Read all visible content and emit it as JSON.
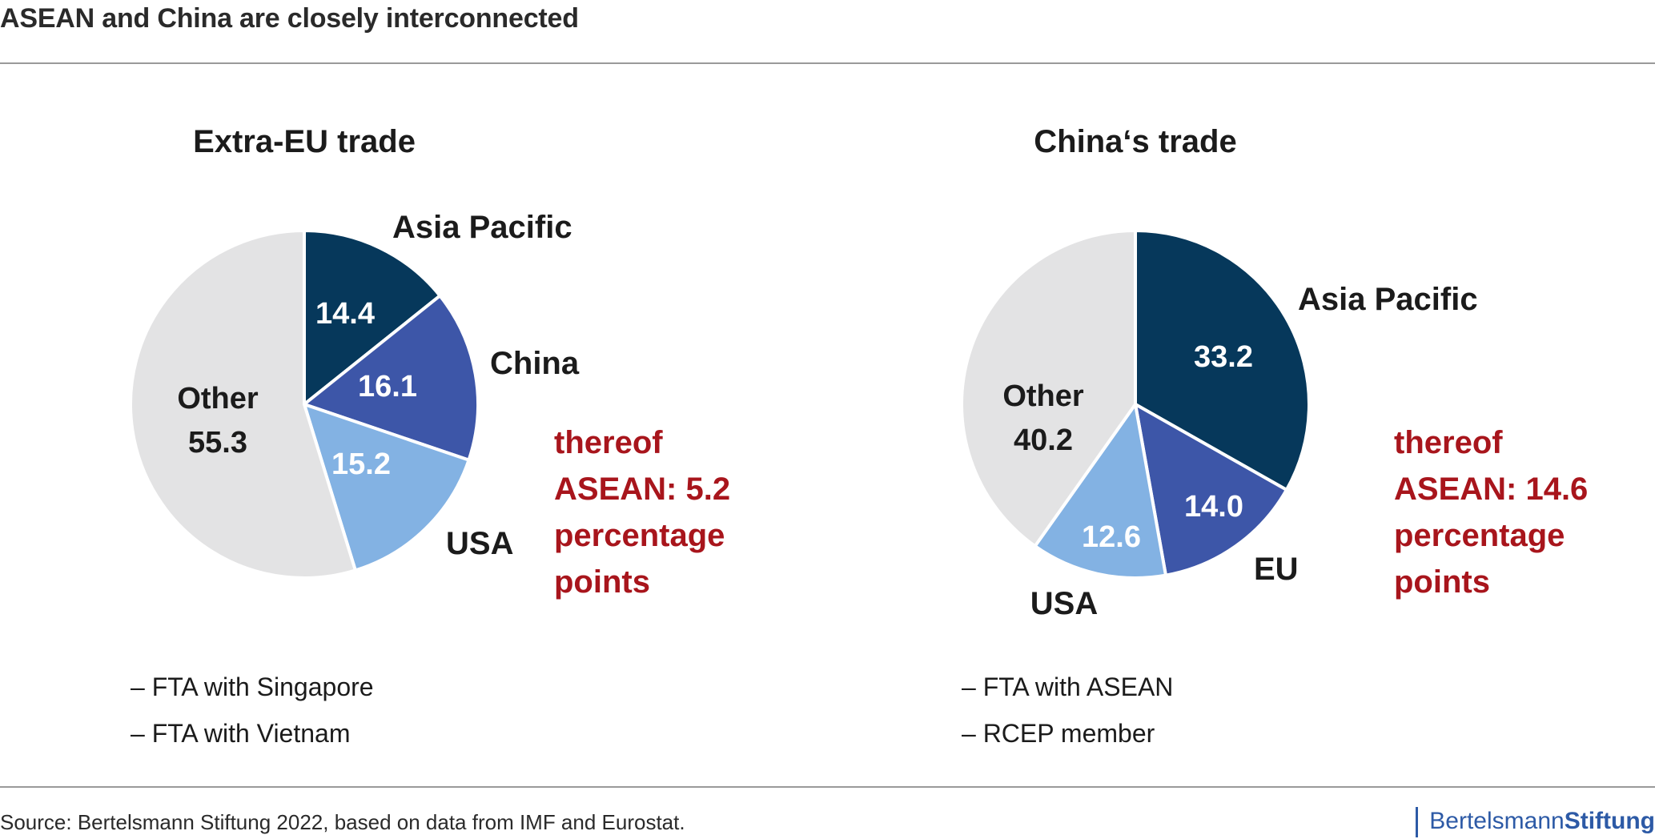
{
  "header": {
    "title": "ASEAN and China are closely interconnected"
  },
  "colors": {
    "asia_pacific": "#06385b",
    "china_eu": "#3d56a8",
    "usa": "#83b2e3",
    "other": "#e3e3e4",
    "note": "#a8151c"
  },
  "chart_data": [
    {
      "type": "pie",
      "title": "Extra-EU trade",
      "slices": [
        {
          "label": "Asia Pacific",
          "value": 14.4,
          "color": "#06385b",
          "value_color": "#ffffff"
        },
        {
          "label": "China",
          "value": 16.1,
          "color": "#3d56a8",
          "value_color": "#ffffff"
        },
        {
          "label": "USA",
          "value": 15.2,
          "color": "#83b2e3",
          "value_color": "#ffffff"
        },
        {
          "label": "Other",
          "value": 55.3,
          "color": "#e3e3e4",
          "value_color": "#1b1b1b"
        }
      ],
      "note_lines": [
        "thereof",
        "ASEAN: 5.2",
        "percentage",
        "points"
      ],
      "bullets": [
        "– FTA with Singapore",
        "– FTA with Vietnam"
      ]
    },
    {
      "type": "pie",
      "title": "China‘s trade",
      "slices": [
        {
          "label": "Asia Pacific",
          "value": 33.2,
          "color": "#06385b",
          "value_color": "#ffffff"
        },
        {
          "label": "EU",
          "value": 14.0,
          "color": "#3d56a8",
          "value_color": "#ffffff"
        },
        {
          "label": "USA",
          "value": 12.6,
          "color": "#83b2e3",
          "value_color": "#ffffff"
        },
        {
          "label": "Other",
          "value": 40.2,
          "color": "#e3e3e4",
          "value_color": "#1b1b1b"
        }
      ],
      "note_lines": [
        "thereof",
        "ASEAN: 14.6",
        "percentage",
        "points"
      ],
      "bullets": [
        "– FTA with ASEAN",
        "– RCEP member"
      ]
    }
  ],
  "footer": {
    "source": "Source: Bertelsmann Stiftung 2022, based on data from IMF and Eurostat.",
    "brand_regular": "Bertelsmann",
    "brand_bold": "Stiftung"
  }
}
